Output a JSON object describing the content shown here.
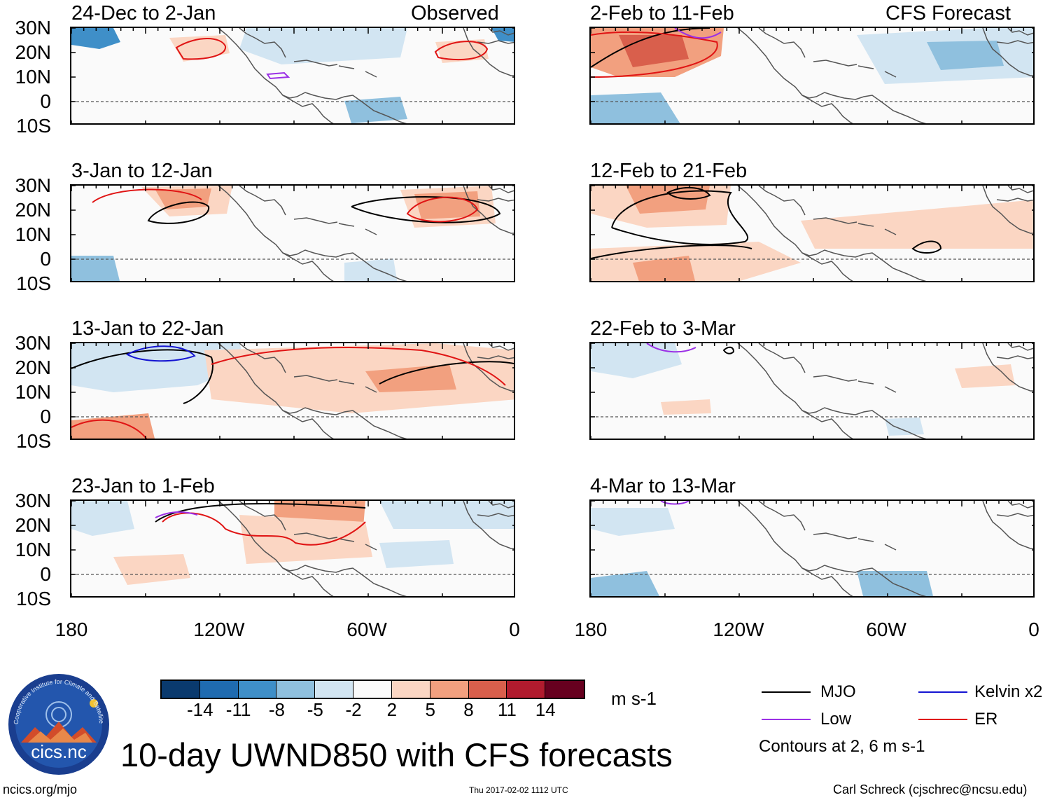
{
  "figure": {
    "title": "10-day UWND850 with CFS forecasts",
    "units": "m s-1",
    "contours_note": "Contours at 2, 6 m s-1",
    "url": "ncics.org/mjo",
    "timestamp": "Thu 2017-02-02 1112 UTC",
    "author": "Carl Schreck (cjschrec@ncsu.edu)",
    "column_headers": {
      "left": "Observed",
      "right": "CFS Forecast"
    },
    "logo": {
      "text": "cics.nc",
      "ring_text": "Cooperative Institute for Climate and Satellites"
    }
  },
  "panels": [
    {
      "period": "24-Dec to 2-Jan",
      "source": "Observed"
    },
    {
      "period": "3-Jan to 12-Jan",
      "source": "Observed"
    },
    {
      "period": "13-Jan to 22-Jan",
      "source": "Observed"
    },
    {
      "period": "23-Jan to 1-Feb",
      "source": "Observed"
    },
    {
      "period": "2-Feb to 11-Feb",
      "source": "CFS Forecast"
    },
    {
      "period": "12-Feb to 21-Feb",
      "source": "CFS Forecast"
    },
    {
      "period": "22-Feb to 3-Mar",
      "source": "CFS Forecast"
    },
    {
      "period": "4-Mar to 13-Mar",
      "source": "CFS Forecast"
    }
  ],
  "axes": {
    "lat_labels": [
      "30N",
      "20N",
      "10N",
      "0",
      "10S"
    ],
    "lon_labels": [
      "180",
      "120W",
      "60W",
      "0"
    ],
    "lat_range": [
      -10,
      30
    ],
    "lon_range": [
      -180,
      0
    ]
  },
  "colorbar": {
    "ticks": [
      "-14",
      "-11",
      "-8",
      "-5",
      "-2",
      "2",
      "5",
      "8",
      "11",
      "14"
    ],
    "colors": [
      "#0a3a6e",
      "#1f6bb0",
      "#3f8fc8",
      "#8fc0de",
      "#d2e5f2",
      "#fafafa",
      "#fbd6c3",
      "#f2a07f",
      "#d95f4c",
      "#b11b2e",
      "#67001f"
    ]
  },
  "legend": [
    {
      "label": "MJO",
      "color": "#000000"
    },
    {
      "label": "Kelvin x2",
      "color": "#1414d2"
    },
    {
      "label": "Low",
      "color": "#9b30e6"
    },
    {
      "label": "ER",
      "color": "#e01414"
    }
  ],
  "chart_data": {
    "type": "map",
    "variable": "850-hPa zonal wind anomaly",
    "units": "m s-1",
    "contour_levels": [
      2,
      6
    ],
    "shading_levels": [
      -14,
      -11,
      -8,
      -5,
      -2,
      2,
      5,
      8,
      11,
      14
    ]
  }
}
